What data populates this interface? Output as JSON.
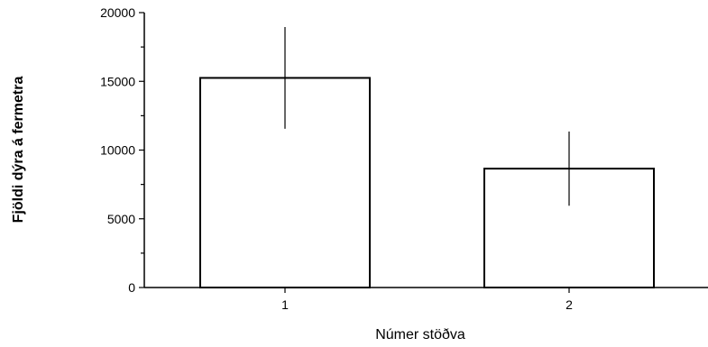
{
  "chart_data": {
    "type": "bar",
    "categories": [
      "1",
      "2"
    ],
    "values": [
      15250,
      8650
    ],
    "error": [
      3700,
      2700
    ],
    "title": "",
    "xlabel": "Númer stöðva",
    "ylabel": "Fjöldi dýra á fermetra",
    "ylim": [
      0,
      20000
    ],
    "yticks": [
      0,
      5000,
      10000,
      15000,
      20000
    ],
    "ytick_labels": [
      "0",
      "5000",
      "10000",
      "15000",
      "20000"
    ],
    "grid": false,
    "colors": {
      "bar_fill": "#ffffff",
      "bar_stroke": "#000000",
      "axis": "#000000"
    }
  }
}
